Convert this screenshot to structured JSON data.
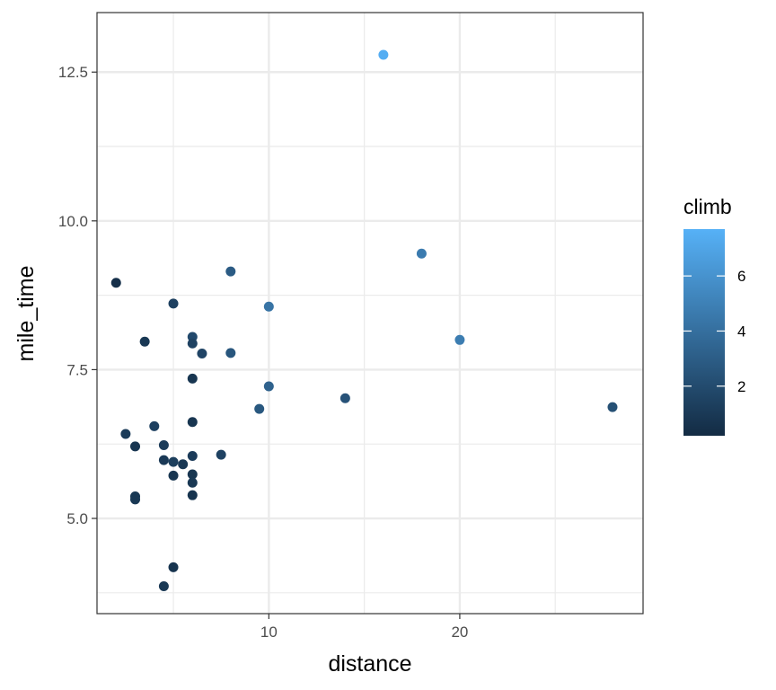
{
  "chart_data": {
    "type": "scatter",
    "xlabel": "distance",
    "ylabel": "mile_time",
    "xlim": [
      1.0,
      29.6
    ],
    "ylim": [
      3.4,
      13.5
    ],
    "x_ticks": [
      10,
      20
    ],
    "x_tick_labels": [
      "10",
      "20"
    ],
    "y_ticks": [
      5.0,
      7.5,
      10.0,
      12.5
    ],
    "y_tick_labels": [
      "5.0",
      "7.5",
      "10.0",
      "12.5"
    ],
    "x_minor_ticks": [
      5,
      15,
      25
    ],
    "y_minor_ticks": [
      3.75,
      6.25,
      8.75,
      11.25
    ],
    "grid": true,
    "legend": {
      "title": "climb",
      "position": "right",
      "type": "colorbar",
      "range": [
        0.2,
        7.7
      ],
      "breaks": [
        2,
        4,
        6
      ],
      "labels": [
        "2",
        "4",
        "6"
      ],
      "low_color": "#132B43",
      "high_color": "#56B1F7"
    },
    "points": [
      {
        "x": 16.0,
        "y": 12.79,
        "climb": 7.5
      },
      {
        "x": 18.0,
        "y": 9.45,
        "climb": 4.7
      },
      {
        "x": 20.0,
        "y": 8.0,
        "climb": 4.8
      },
      {
        "x": 10.0,
        "y": 8.56,
        "climb": 4.3
      },
      {
        "x": 8.0,
        "y": 9.15,
        "climb": 2.9
      },
      {
        "x": 2.0,
        "y": 8.96,
        "climb": 0.5
      },
      {
        "x": 5.0,
        "y": 8.61,
        "climb": 1.4
      },
      {
        "x": 3.5,
        "y": 7.97,
        "climb": 0.9
      },
      {
        "x": 6.0,
        "y": 8.05,
        "climb": 1.9
      },
      {
        "x": 6.0,
        "y": 7.94,
        "climb": 1.5
      },
      {
        "x": 6.5,
        "y": 7.77,
        "climb": 1.6
      },
      {
        "x": 8.0,
        "y": 7.78,
        "climb": 2.6
      },
      {
        "x": 6.0,
        "y": 7.35,
        "climb": 0.8
      },
      {
        "x": 10.0,
        "y": 7.22,
        "climb": 3.3
      },
      {
        "x": 14.0,
        "y": 7.02,
        "climb": 2.4
      },
      {
        "x": 9.5,
        "y": 6.84,
        "climb": 2.7
      },
      {
        "x": 28.0,
        "y": 6.87,
        "climb": 2.3
      },
      {
        "x": 2.5,
        "y": 6.42,
        "climb": 1.1
      },
      {
        "x": 4.0,
        "y": 6.55,
        "climb": 1.4
      },
      {
        "x": 6.0,
        "y": 6.62,
        "climb": 0.8
      },
      {
        "x": 3.0,
        "y": 6.21,
        "climb": 0.8
      },
      {
        "x": 4.5,
        "y": 6.23,
        "climb": 1.1
      },
      {
        "x": 7.5,
        "y": 6.07,
        "climb": 1.5
      },
      {
        "x": 6.0,
        "y": 6.05,
        "climb": 1.1
      },
      {
        "x": 4.5,
        "y": 5.98,
        "climb": 1.0
      },
      {
        "x": 5.0,
        "y": 5.95,
        "climb": 1.3
      },
      {
        "x": 5.5,
        "y": 5.91,
        "climb": 0.9
      },
      {
        "x": 5.0,
        "y": 5.72,
        "climb": 0.8
      },
      {
        "x": 6.0,
        "y": 5.74,
        "climb": 0.8
      },
      {
        "x": 6.0,
        "y": 5.6,
        "climb": 0.9
      },
      {
        "x": 6.0,
        "y": 5.39,
        "climb": 0.7
      },
      {
        "x": 3.0,
        "y": 5.37,
        "climb": 0.9
      },
      {
        "x": 3.0,
        "y": 5.32,
        "climb": 0.9
      },
      {
        "x": 5.0,
        "y": 4.18,
        "climb": 0.7
      },
      {
        "x": 4.5,
        "y": 3.86,
        "climb": 0.9
      }
    ]
  }
}
